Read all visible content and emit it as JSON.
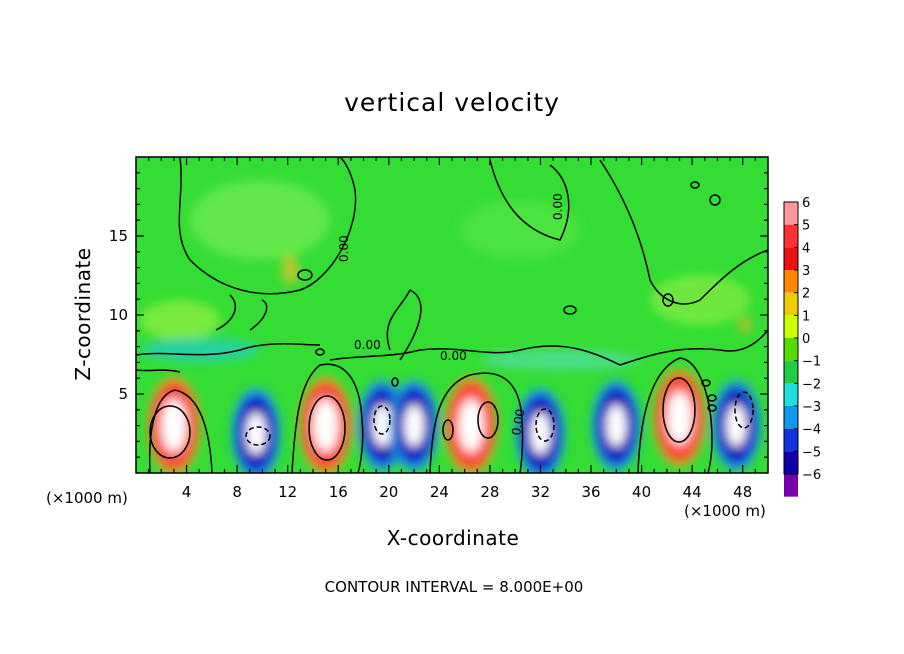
{
  "title": "vertical velocity",
  "footnote": "CONTOUR INTERVAL = 8.000E+00",
  "colors": {
    "background_field": "#33dd33",
    "positive_core": "#ffffff",
    "positive_ring": "#ff2222",
    "negative_core": "#ffffff",
    "negative_ring": "#1111cc"
  },
  "chart_data": {
    "type": "heatmap",
    "title": "vertical velocity",
    "xlabel": "X-coordinate",
    "ylabel": "Z-coordinate",
    "x_unit_label": "(×1000 m)",
    "xlim": [
      0,
      50
    ],
    "ylim": [
      0,
      20
    ],
    "x_ticks": [
      4,
      8,
      12,
      16,
      20,
      24,
      28,
      32,
      36,
      40,
      44,
      48
    ],
    "y_ticks": [
      5,
      10,
      15
    ],
    "contour_interval": "8.000E+00",
    "contour_labels": [
      "0.00",
      "0.00",
      "0.00",
      "0.00",
      "0.00"
    ],
    "colorbar": {
      "ticks": [
        6,
        5,
        4,
        3,
        2,
        1,
        0,
        -1,
        -2,
        -3,
        -4,
        -5,
        -6
      ],
      "colors": [
        "#ff9999",
        "#ff3333",
        "#ee1111",
        "#ff8800",
        "#eecc00",
        "#ccff00",
        "#55dd00",
        "#22cc44",
        "#22dddd",
        "#1199ee",
        "#1133dd",
        "#1100aa",
        "#7700aa"
      ]
    },
    "cells": [
      {
        "x": 3,
        "z": 3,
        "value": 6,
        "sign": "up"
      },
      {
        "x": 9.5,
        "z": 2.5,
        "value": -6,
        "sign": "down"
      },
      {
        "x": 15,
        "z": 3,
        "value": 6,
        "sign": "up"
      },
      {
        "x": 19.5,
        "z": 3,
        "value": -6,
        "sign": "down"
      },
      {
        "x": 22,
        "z": 3,
        "value": -6,
        "sign": "down"
      },
      {
        "x": 26.5,
        "z": 3,
        "value": 6,
        "sign": "up"
      },
      {
        "x": 32,
        "z": 2.5,
        "value": -6,
        "sign": "down"
      },
      {
        "x": 38,
        "z": 3,
        "value": -5,
        "sign": "down"
      },
      {
        "x": 43,
        "z": 3.5,
        "value": 6,
        "sign": "up"
      },
      {
        "x": 47.5,
        "z": 3,
        "value": -6,
        "sign": "down"
      }
    ]
  }
}
